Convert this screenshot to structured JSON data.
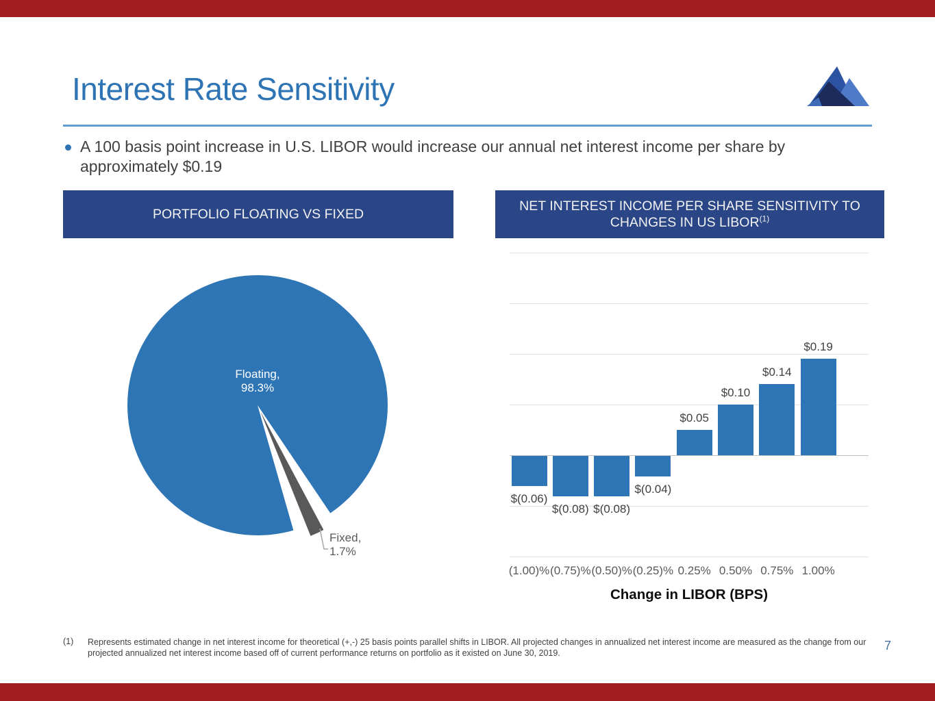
{
  "slide": {
    "title": "Interest Rate Sensitivity",
    "bullet": "A 100 basis point increase in U.S. LIBOR would increase our annual net interest income per share by approximately $0.19",
    "footnote_marker": "(1)",
    "footnote": "Represents estimated change in net interest income for theoretical (+,-) 25 basis points parallel shifts in LIBOR. All projected changes in annualized net interest income are measured as the change from our projected annualized net interest income based off of current performance returns on portfolio as it existed on June 30, 2019.",
    "page_number": "7"
  },
  "panels": {
    "left_header": "PORTFOLIO FLOATING VS FIXED",
    "right_header_line1": "NET INTEREST INCOME PER SHARE SENSITIVITY TO",
    "right_header_line2": "CHANGES IN US LIBOR",
    "right_header_superscript": "(1)"
  },
  "colors": {
    "accent_blue": "#2E74B5",
    "rule_blue": "#5B9BD5",
    "header_bg": "#2A4687",
    "chart_blue": "#2E75B6",
    "fixed_gray": "#595959",
    "red_band": "#A01D20",
    "page_number_blue": "#41719C"
  },
  "icons": {
    "logo": "mountain-logo-icon"
  },
  "chart_data": [
    {
      "type": "pie",
      "title": "PORTFOLIO FLOATING VS FIXED",
      "slices": [
        {
          "label": "Floating,",
          "value_label": "98.3%",
          "value": 98.3,
          "color": "#2E75B6"
        },
        {
          "label": "Fixed,",
          "value_label": "1.7%",
          "value": 1.7,
          "color": "#595959"
        }
      ],
      "legend": "none"
    },
    {
      "type": "bar",
      "title": "NET INTEREST INCOME PER SHARE SENSITIVITY TO CHANGES IN US LIBOR(1)",
      "categories": [
        "(1.00)%",
        "(0.75)%",
        "(0.50)%",
        "(0.25)%",
        "0.25%",
        "0.50%",
        "0.75%",
        "1.00%"
      ],
      "values": [
        -0.06,
        -0.08,
        -0.08,
        -0.04,
        0.05,
        0.1,
        0.14,
        0.19
      ],
      "labels": [
        "$(0.06)",
        "$(0.08)",
        "$(0.08)",
        "$(0.04)",
        "$0.05",
        "$0.10",
        "$0.14",
        "$0.19"
      ],
      "xlabel": "Change in LIBOR (BPS)",
      "ylabel": "",
      "ylim": [
        -0.2,
        0.4
      ],
      "gridline_step": 0.1,
      "grid": true,
      "legend_position": "none"
    }
  ]
}
